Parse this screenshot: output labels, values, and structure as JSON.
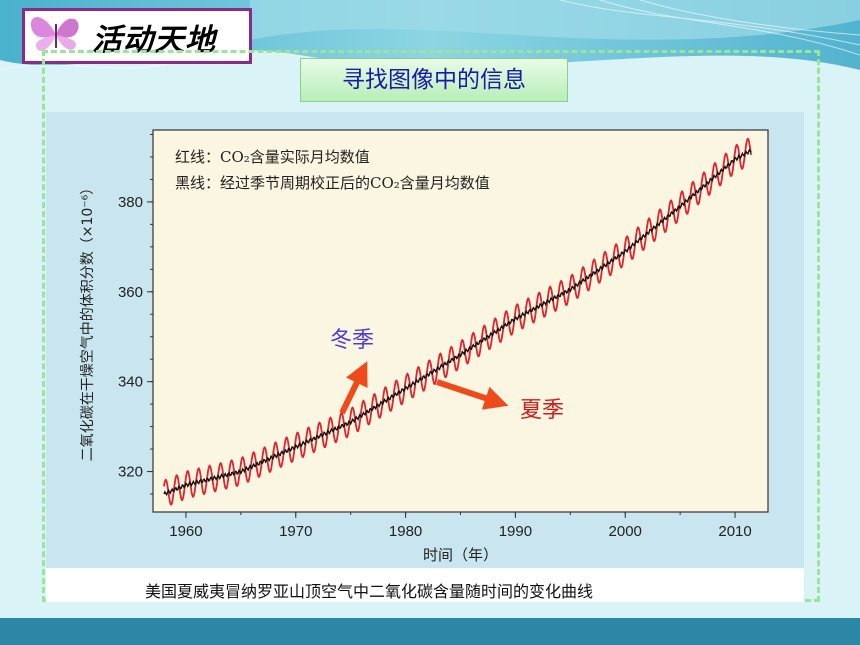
{
  "slide": {
    "title": "活动天地",
    "subtitle": "寻找图像中的信息",
    "caption": "美国夏威夷冒纳罗亚山顶空气中二氧化碳含量随时间的变化曲线"
  },
  "annotations": {
    "winter": "冬季",
    "summer": "夏季"
  },
  "colors": {
    "red_line": "#e0242c",
    "black_line": "#111111",
    "plot_bg": "#fbf6e1",
    "winter_text": "#4b3bd8",
    "summer_text": "#d11a1a",
    "arrow": "#ee4a1c"
  },
  "chart_data": {
    "type": "line",
    "xlabel": "时间（年）",
    "ylabel": "二氧化碳在干燥空气中的体积分数（×10⁻⁶）",
    "xlim": [
      1957,
      2013
    ],
    "ylim": [
      311,
      396
    ],
    "xticks": [
      1960,
      1970,
      1980,
      1990,
      2000,
      2010
    ],
    "yticks": [
      320,
      340,
      360,
      380
    ],
    "legend": {
      "placement": "top-left",
      "entries": [
        {
          "prefix": "红线：",
          "text": "CO₂含量实际月均数值"
        },
        {
          "prefix": "黑线：",
          "text": "经过季节周期校正后的CO₂含量月均数值"
        }
      ]
    },
    "series": [
      {
        "name": "红线：CO₂含量实际月均数值",
        "color": "#e0242c",
        "seasonal_amplitude": 3,
        "x": [
          1958,
          1960,
          1965,
          1970,
          1975,
          1980,
          1985,
          1990,
          1995,
          2000,
          2005,
          2010,
          2011.5
        ],
        "y": [
          315,
          317,
          320,
          325.5,
          331,
          338.5,
          346,
          354,
          360.5,
          369,
          379,
          389.5,
          391.5
        ]
      },
      {
        "name": "黑线：经过季节周期校正后的CO₂含量月均数值",
        "color": "#111111",
        "x": [
          1958,
          1960,
          1965,
          1970,
          1975,
          1980,
          1985,
          1990,
          1995,
          2000,
          2005,
          2010,
          2011.5
        ],
        "y": [
          315,
          317,
          320,
          325.5,
          331,
          338.5,
          346,
          354,
          360.5,
          369,
          379,
          389.5,
          391.5
        ]
      }
    ]
  }
}
